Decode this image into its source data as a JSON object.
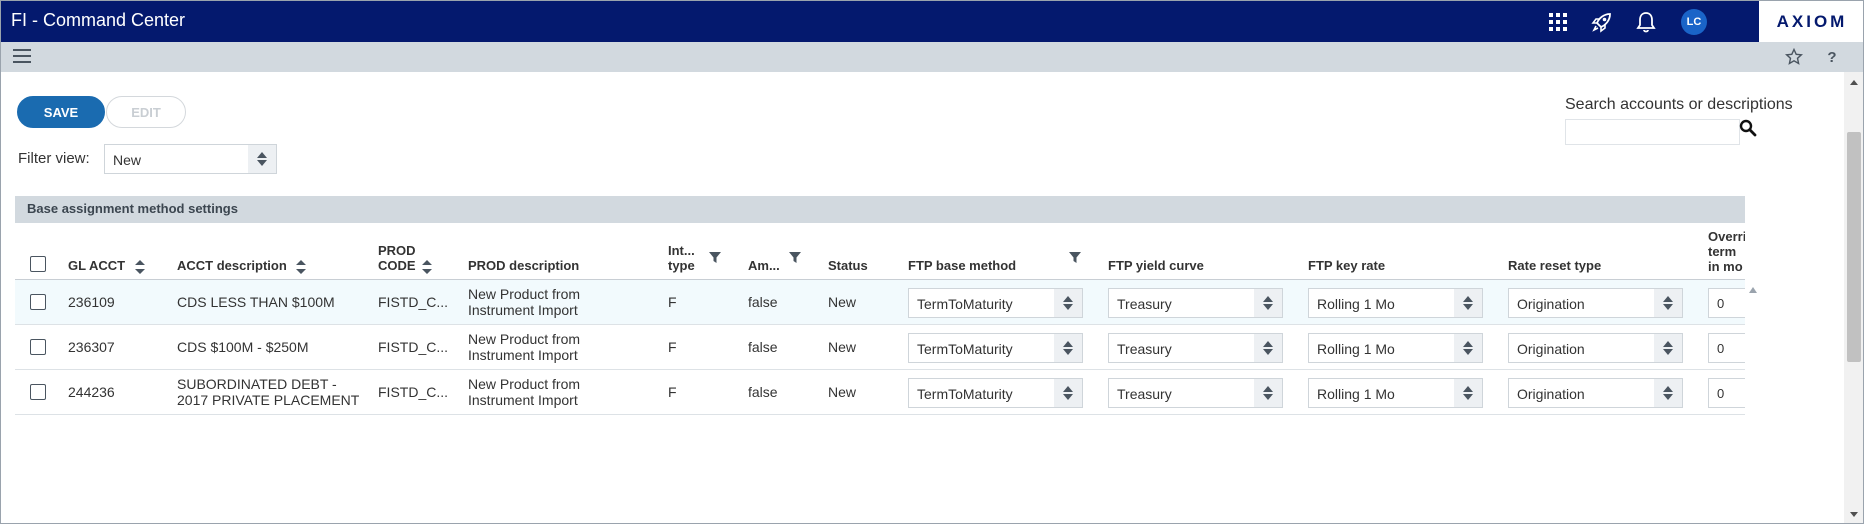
{
  "app": {
    "title": "FI - Command Center",
    "brand": "AXIOM"
  },
  "topbar": {
    "avatar_initials": "LC",
    "icons": [
      "apps-grid-icon",
      "rocket-icon",
      "bell-icon"
    ]
  },
  "subbar": {
    "icons": [
      "menu-icon",
      "star-icon",
      "help-icon"
    ],
    "help_label": "?"
  },
  "toolbar": {
    "save_label": "SAVE",
    "edit_label": "EDIT"
  },
  "filter": {
    "label": "Filter view:",
    "value": "New"
  },
  "search": {
    "label": "Search accounts or descriptions",
    "value": ""
  },
  "section": {
    "title": "Base assignment method settings"
  },
  "grid": {
    "columns": {
      "gl_acct": "GL ACCT",
      "acct_desc": "ACCT description",
      "prod_code_1": "PROD",
      "prod_code_2": "CODE",
      "prod_desc": "PROD description",
      "int_type_1": "Int...",
      "int_type_2": "type",
      "am": "Am...",
      "status": "Status",
      "ftp_base": "FTP base method",
      "ftp_curve": "FTP yield curve",
      "ftp_key": "FTP key rate",
      "reset": "Rate reset type",
      "override_1": "Overri",
      "override_2": "term",
      "override_3": "in mo"
    },
    "rows": [
      {
        "gl": "236109",
        "desc1": "CDS LESS THAN $100M",
        "desc2": "",
        "prod_code": "FISTD_C...",
        "prod_desc1": "New Product from",
        "prod_desc2": "Instrument Import",
        "int_type": "F",
        "am": "false",
        "status": "New",
        "ftp_base": "TermToMaturity",
        "ftp_curve": "Treasury",
        "ftp_key": "Rolling 1 Mo",
        "reset": "Origination",
        "override": "0"
      },
      {
        "gl": "236307",
        "desc1": "CDS $100M - $250M",
        "desc2": "",
        "prod_code": "FISTD_C...",
        "prod_desc1": "New Product from",
        "prod_desc2": "Instrument Import",
        "int_type": "F",
        "am": "false",
        "status": "New",
        "ftp_base": "TermToMaturity",
        "ftp_curve": "Treasury",
        "ftp_key": "Rolling 1 Mo",
        "reset": "Origination",
        "override": "0"
      },
      {
        "gl": "244236",
        "desc1": "SUBORDINATED DEBT -",
        "desc2": "2017 PRIVATE PLACEMENT",
        "prod_code": "FISTD_C...",
        "prod_desc1": "New Product from",
        "prod_desc2": "Instrument Import",
        "int_type": "F",
        "am": "false",
        "status": "New",
        "ftp_base": "TermToMaturity",
        "ftp_curve": "Treasury",
        "ftp_key": "Rolling 1 Mo",
        "reset": "Origination",
        "override": "0"
      }
    ]
  },
  "colors": {
    "topbar": "#04196e",
    "subbar": "#d2d9df",
    "save_button": "#1a6bb0",
    "row_highlight": "#f2fafd"
  }
}
